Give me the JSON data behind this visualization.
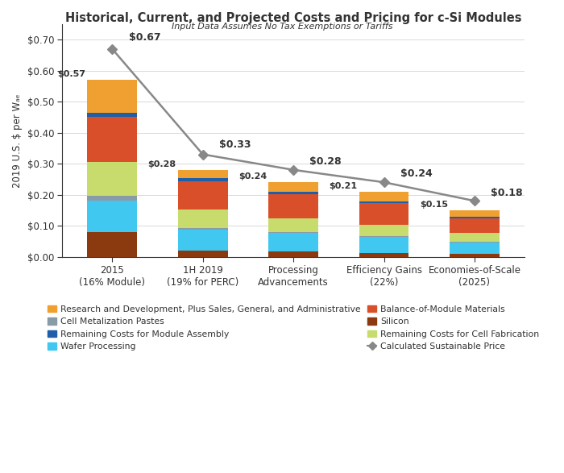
{
  "title": "Historical, Current, and Projected Costs and Pricing for c-Si Modules",
  "subtitle": "Input Data Assumes No Tax Exemptions or Tariffs",
  "ylabel": "2019 U.S. $ per Wₐₑ",
  "categories": [
    "2015\n(16% Module)",
    "1H 2019\n(19% for PERC)",
    "Processing\nAdvancements",
    "Efficiency Gains\n(22%)",
    "Economies-of-Scale\n(2025)"
  ],
  "bar_totals": [
    0.57,
    0.28,
    0.24,
    0.21,
    0.15
  ],
  "line_values": [
    0.67,
    0.33,
    0.28,
    0.24,
    0.18
  ],
  "line_labels": [
    "$0.67",
    "$0.33",
    "$0.28",
    "$0.24",
    "$0.18"
  ],
  "bar_labels": [
    "$0.57",
    "$0.28",
    "$0.24",
    "$0.21",
    "$0.15"
  ],
  "segment_order": [
    "Silicon",
    "Wafer Processing",
    "Cell Metalization Pastes",
    "Remaining Costs for Cell Fabrication",
    "Balance-of-Module Materials",
    "Remaining Costs for Module Assembly",
    "Research and Development, Plus Sales, General, and Administrative"
  ],
  "segments": {
    "Silicon": [
      0.08,
      0.02,
      0.016,
      0.013,
      0.008
    ],
    "Wafer Processing": [
      0.1,
      0.068,
      0.06,
      0.05,
      0.038
    ],
    "Cell Metalization Pastes": [
      0.016,
      0.005,
      0.004,
      0.003,
      0.002
    ],
    "Remaining Costs for Cell Fabrication": [
      0.11,
      0.058,
      0.044,
      0.038,
      0.028
    ],
    "Balance-of-Module Materials": [
      0.145,
      0.092,
      0.078,
      0.068,
      0.048
    ],
    "Remaining Costs for Module Assembly": [
      0.014,
      0.01,
      0.008,
      0.007,
      0.005
    ],
    "Research and Development, Plus Sales, General, and Administrative": [
      0.105,
      0.027,
      0.03,
      0.031,
      0.021
    ]
  },
  "colors": {
    "Silicon": "#8B3A0F",
    "Wafer Processing": "#40C8F0",
    "Cell Metalization Pastes": "#8A9BA8",
    "Remaining Costs for Cell Fabrication": "#C8DC6E",
    "Balance-of-Module Materials": "#D94F2A",
    "Remaining Costs for Module Assembly": "#1F5EA8",
    "Research and Development, Plus Sales, General, and Administrative": "#F0A030"
  },
  "line_color": "#888888",
  "line_marker_color": "#888888",
  "ylim": [
    0,
    0.75
  ],
  "yticks": [
    0.0,
    0.1,
    0.2,
    0.3,
    0.4,
    0.5,
    0.6,
    0.7
  ],
  "ytick_labels": [
    "$0.00",
    "$0.10",
    "$0.20",
    "$0.30",
    "$0.40",
    "$0.50",
    "$0.60",
    "$0.70"
  ],
  "background_color": "#ffffff",
  "plot_bg_color": "#ffffff",
  "text_color": "#333333",
  "axis_color": "#333333",
  "bar_width": 0.55,
  "legend_left": [
    "Research and Development, Plus Sales, General, and Administrative",
    "Remaining Costs for Module Assembly",
    "Balance-of-Module Materials",
    "Remaining Costs for Cell Fabrication"
  ],
  "legend_right": [
    "Cell Metalization Pastes",
    "Wafer Processing",
    "Silicon"
  ]
}
